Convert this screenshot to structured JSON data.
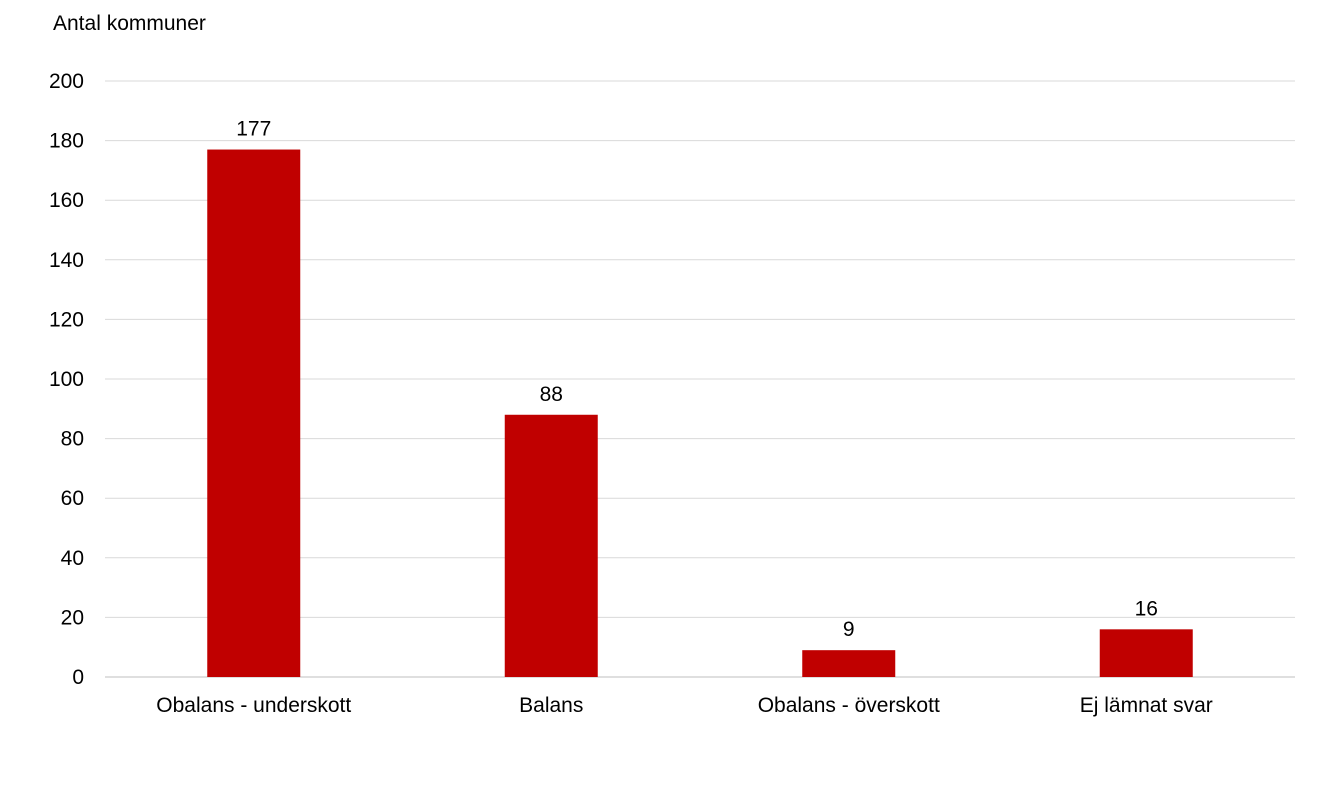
{
  "chart_data": {
    "type": "bar",
    "title": "",
    "xlabel": "",
    "ylabel": "Antal kommuner",
    "categories": [
      "Obalans - underskott",
      "Balans",
      "Obalans - överskott",
      "Ej lämnat svar"
    ],
    "values": [
      177,
      88,
      9,
      16
    ],
    "ylim": [
      0,
      200
    ],
    "yticks": [
      0,
      20,
      40,
      60,
      80,
      100,
      120,
      140,
      160,
      180,
      200
    ],
    "data_labels": true,
    "grid": true,
    "legend": "none",
    "bar_color": "#c00000",
    "grid_color": "#d9d9d9"
  }
}
